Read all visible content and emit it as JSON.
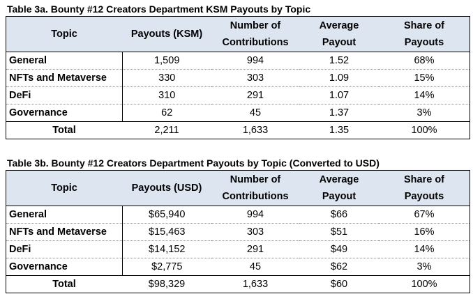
{
  "table_a": {
    "caption": "Table 3a. Bounty #12 Creators Department KSM Payouts by Topic",
    "headers": [
      "Topic",
      "Payouts (KSM)",
      "Number of Contributions",
      "Average Payout",
      "Share of Payouts"
    ],
    "header_lines": [
      [
        "Topic"
      ],
      [
        "Payouts (KSM)"
      ],
      [
        "Number of",
        "Contributions"
      ],
      [
        "Average",
        "Payout"
      ],
      [
        "Share of",
        "Payouts"
      ]
    ],
    "rows": [
      [
        "General",
        "1,509",
        "994",
        "1.52",
        "68%"
      ],
      [
        "NFTs and Metaverse",
        "330",
        "303",
        "1.09",
        "15%"
      ],
      [
        "DeFi",
        "310",
        "291",
        "1.07",
        "14%"
      ],
      [
        "Governance",
        "62",
        "45",
        "1.37",
        "3%"
      ]
    ],
    "total": [
      "Total",
      "2,211",
      "1,633",
      "1.35",
      "100%"
    ]
  },
  "table_b": {
    "caption": "Table 3b. Bounty #12 Creators Department Payouts by Topic (Converted to USD)",
    "headers": [
      "Topic",
      "Payouts (USD)",
      "Number of Contributions",
      "Average Payout",
      "Share of Payouts"
    ],
    "header_lines": [
      [
        "Topic"
      ],
      [
        "Payouts (USD)"
      ],
      [
        "Number of",
        "Contributions"
      ],
      [
        "Average",
        "Payout"
      ],
      [
        "Share of",
        "Payouts"
      ]
    ],
    "rows": [
      [
        "General",
        "$65,940",
        "994",
        "$66",
        "67%"
      ],
      [
        "NFTs and Metaverse",
        "$15,463",
        "303",
        "$51",
        "16%"
      ],
      [
        "DeFi",
        "$14,152",
        "291",
        "$49",
        "14%"
      ],
      [
        "Governance",
        "$2,775",
        "45",
        "$62",
        "3%"
      ]
    ],
    "total": [
      "Total",
      "$98,329",
      "1,633",
      "$60",
      "100%"
    ]
  }
}
